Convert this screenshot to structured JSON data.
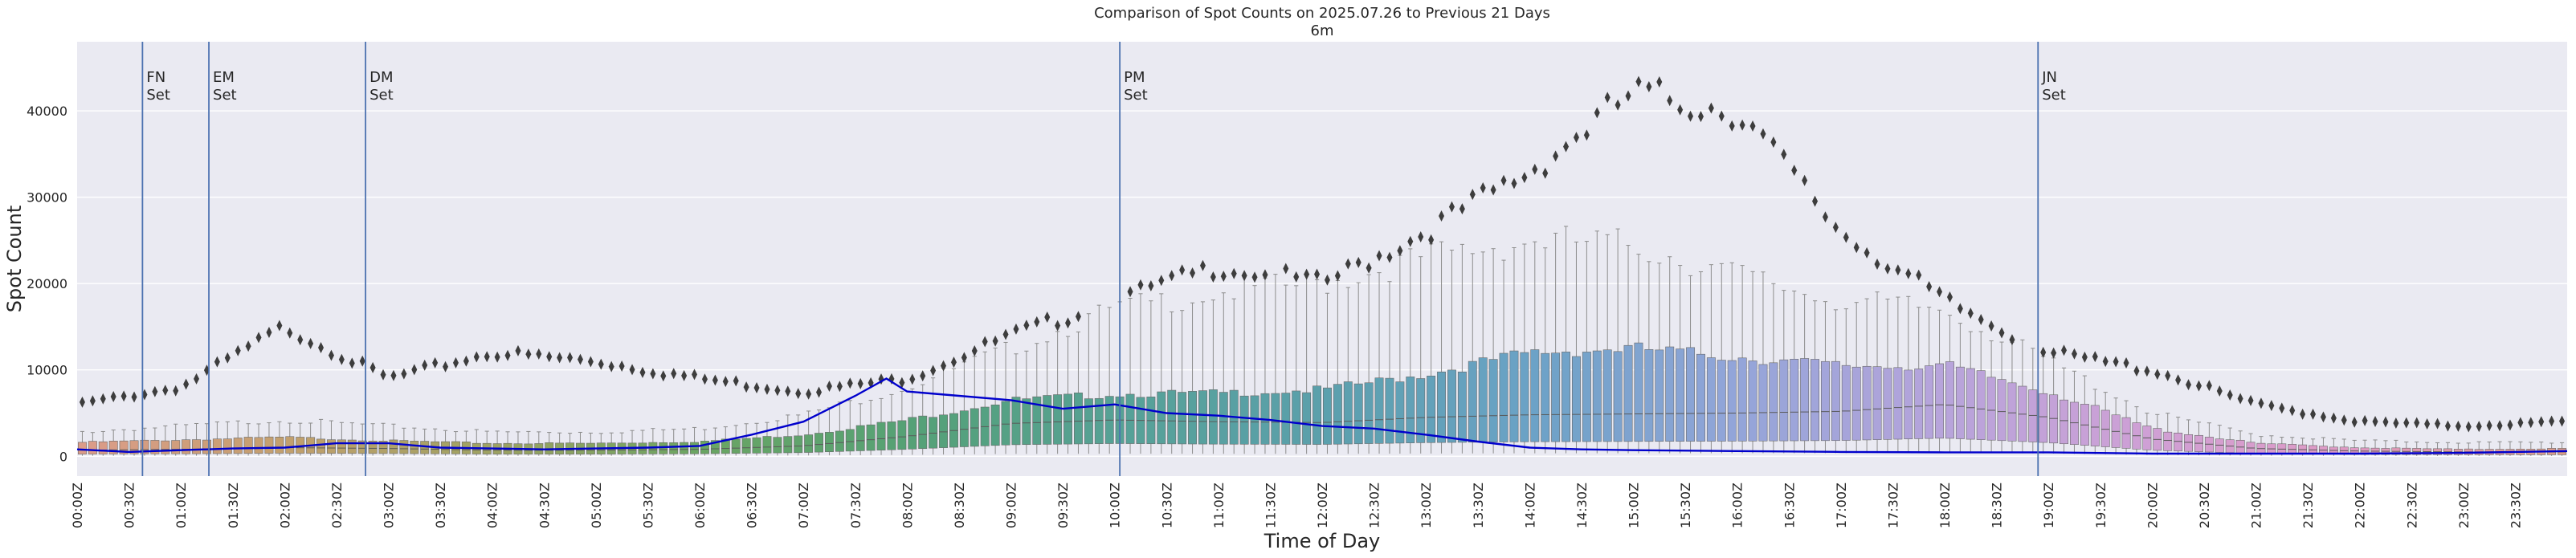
{
  "chart_data": {
    "type": "box",
    "title": "Comparison of Spot Counts on 2025.07.26 to Previous 21 Days",
    "subtitle": "6m",
    "xlabel": "Time of Day",
    "ylabel": "Spot Count",
    "ylim": [
      -2300,
      48000
    ],
    "yticks": [
      0,
      10000,
      20000,
      30000,
      40000
    ],
    "grid": true,
    "bin_count": 240,
    "bin_minutes": 6,
    "x_tick_labels": [
      "00:00Z",
      "00:30Z",
      "01:00Z",
      "01:30Z",
      "02:00Z",
      "02:30Z",
      "03:00Z",
      "03:30Z",
      "04:00Z",
      "04:30Z",
      "05:00Z",
      "05:30Z",
      "06:00Z",
      "06:30Z",
      "07:00Z",
      "07:30Z",
      "08:00Z",
      "08:30Z",
      "09:00Z",
      "09:30Z",
      "10:00Z",
      "10:30Z",
      "11:00Z",
      "11:30Z",
      "12:00Z",
      "12:30Z",
      "13:00Z",
      "13:30Z",
      "14:00Z",
      "14:30Z",
      "15:00Z",
      "15:30Z",
      "16:00Z",
      "16:30Z",
      "17:00Z",
      "17:30Z",
      "18:00Z",
      "18:30Z",
      "19:00Z",
      "19:30Z",
      "20:00Z",
      "20:30Z",
      "21:00Z",
      "21:30Z",
      "22:00Z",
      "22:30Z",
      "23:00Z",
      "23:30Z"
    ],
    "profile_points": {
      "hours": [
        0,
        1,
        2,
        3,
        4,
        5,
        6,
        7,
        8,
        9,
        10,
        11,
        12,
        13,
        14,
        15,
        16,
        17,
        18,
        19,
        20,
        21,
        22,
        23,
        24
      ],
      "median": [
        700,
        800,
        1000,
        900,
        700,
        700,
        800,
        1200,
        2300,
        3800,
        4200,
        4000,
        3900,
        4500,
        4800,
        4900,
        5000,
        5200,
        6000,
        4500,
        2000,
        900,
        600,
        500,
        500
      ],
      "q3": [
        1600,
        1900,
        2200,
        1800,
        1500,
        1500,
        1700,
        2500,
        4200,
        6500,
        7200,
        7300,
        7700,
        9500,
        12000,
        12500,
        11500,
        10500,
        10500,
        7500,
        3200,
        1500,
        1000,
        800,
        900
      ],
      "whisker_top": [
        2800,
        3500,
        4200,
        3500,
        2800,
        2800,
        3200,
        4800,
        8000,
        12500,
        17000,
        19000,
        20000,
        23000,
        25000,
        24500,
        21000,
        18000,
        17000,
        11000,
        5000,
        2500,
        1800,
        1600,
        1600
      ],
      "outlier_top": [
        6000,
        8000,
        15000,
        9000,
        12000,
        11000,
        9000,
        7500,
        9000,
        14000,
        18000,
        22000,
        20000,
        26000,
        33000,
        42000,
        40000,
        26000,
        18000,
        12000,
        10000,
        6000,
        4000,
        3500,
        4000
      ]
    },
    "series": [
      {
        "name": "2025.07.26",
        "color": "#0000cc",
        "x_hours": [
          0,
          0.5,
          1,
          1.5,
          2,
          2.5,
          3,
          3.5,
          4,
          4.5,
          5,
          5.5,
          6,
          6.5,
          7,
          7.5,
          7.8,
          8,
          8.5,
          9,
          9.5,
          10,
          10.5,
          11,
          11.5,
          12,
          12.5,
          13,
          13.5,
          14,
          14.5,
          15,
          16,
          17,
          18,
          19,
          20,
          21,
          22,
          23,
          24
        ],
        "values": [
          800,
          500,
          700,
          900,
          1000,
          1500,
          1500,
          1000,
          900,
          800,
          900,
          1000,
          1200,
          2500,
          4000,
          7000,
          9000,
          7500,
          7000,
          6500,
          5500,
          6000,
          5000,
          4700,
          4200,
          3500,
          3200,
          2500,
          1700,
          1000,
          800,
          700,
          600,
          500,
          450,
          450,
          300,
          300,
          300,
          400,
          600
        ]
      }
    ],
    "events": [
      {
        "label_line1": "FN",
        "label_line2": "Set",
        "hour": 0.63
      },
      {
        "label_line1": "EM",
        "label_line2": "Set",
        "hour": 1.27
      },
      {
        "label_line1": "DM",
        "label_line2": "Set",
        "hour": 2.78
      },
      {
        "label_line1": "PM",
        "label_line2": "Set",
        "hour": 10.05
      },
      {
        "label_line1": "JN",
        "label_line2": "Set",
        "hour": 18.9
      }
    ],
    "colors": {
      "background": "#eaeaf2",
      "grid": "#ffffff",
      "event_line": "#4c72b0",
      "whisker": "#8c8c8c",
      "outlier": "#3d3d3d",
      "palette": [
        "#dc9c89",
        "#c2a06e",
        "#9da262",
        "#6aa563",
        "#55a176",
        "#56a196",
        "#5ba0ac",
        "#6ba2c6",
        "#93a5d9",
        "#b7a4db",
        "#cfa0d5",
        "#e09ac4",
        "#dc9c89"
      ]
    }
  }
}
